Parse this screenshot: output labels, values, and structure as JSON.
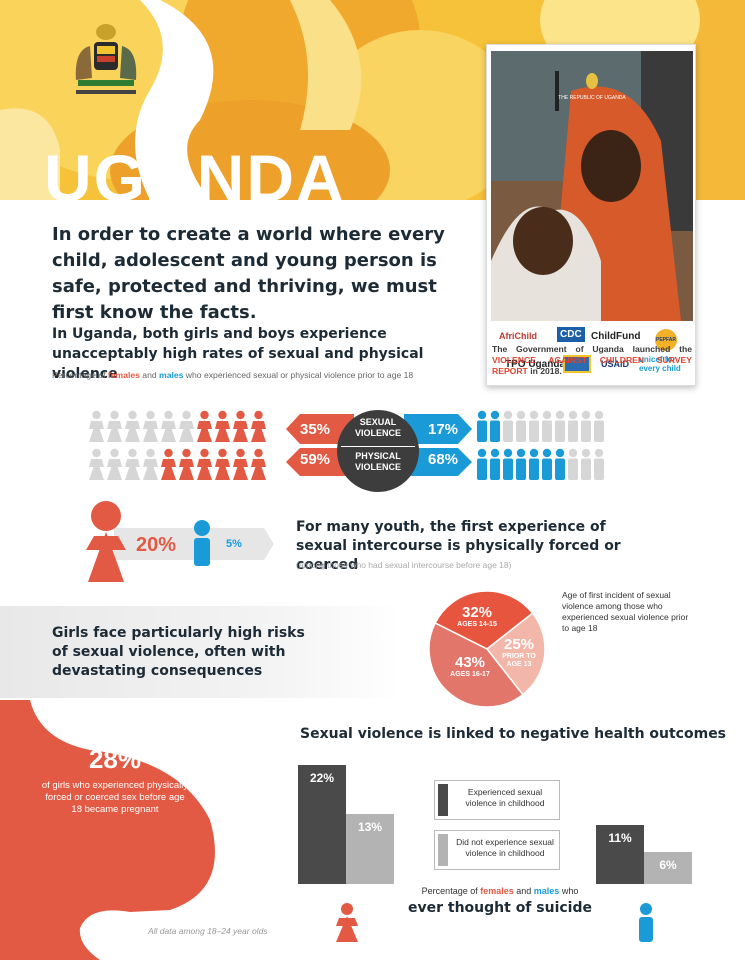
{
  "header": {
    "country": "UGANDA",
    "crest_text": "THE REPUBLIC OF UGANDA"
  },
  "intro": "In order to create a world where every child, adolescent and young person is safe, protected and thriving, we must first know the facts.",
  "violence": {
    "heading": "In Uganda, both girls and boys experience unacceptably high rates of sexual and physical violence",
    "subtitle_pre": "Percentage of ",
    "subtitle_females": "females",
    "subtitle_and": " and ",
    "subtitle_males": "males",
    "subtitle_post": " who experienced sexual or physical violence prior to age 18",
    "sexual": {
      "label": "SEXUAL VIOLENCE",
      "female": "35%",
      "male": "17%",
      "female_value": 35,
      "male_value": 17
    },
    "physical": {
      "label": "PHYSICAL VIOLENCE",
      "female": "59%",
      "male": "68%",
      "female_value": 59,
      "male_value": 68
    },
    "colors": {
      "female": "#e35a44",
      "male": "#1a9bd8",
      "neutral": "#d6d6d6",
      "center": "#3d3d3d"
    }
  },
  "forced": {
    "female": "20%",
    "male": "5%",
    "text": "For many youth, the first experience of sexual intercourse is physically forced or coerced",
    "note": "(among those who had sexual intercourse before age 18)"
  },
  "girls": {
    "text": "Girls face particularly high risks of sexual violence, often with devastating consequences"
  },
  "age_pie": {
    "caption": "Age of first incident of sexual violence among those who experienced sexual violence prior to age 18",
    "slices": [
      {
        "value": "32%",
        "label": "AGES 14-15",
        "pct": 32,
        "color": "#e8553f"
      },
      {
        "value": "25%",
        "label": "PRIOR TO AGE 13",
        "pct": 25,
        "color": "#f3b7aa"
      },
      {
        "value": "43%",
        "label": "AGES 16-17",
        "pct": 43,
        "color": "#e2766a"
      }
    ]
  },
  "pregnant": {
    "value": "28%",
    "text": "of girls who experienced physically forced or coerced sex before age 18 became pregnant"
  },
  "health": {
    "title": "Sexual violence is linked to negative health outcomes",
    "female_bars": [
      {
        "label": "22%",
        "value": 22
      },
      {
        "label": "13%",
        "value": 13
      }
    ],
    "male_bars": [
      {
        "label": "11%",
        "value": 11
      },
      {
        "label": "6%",
        "value": 6
      }
    ],
    "legend": [
      {
        "text": "Experienced sexual violence in childhood",
        "color": "#4a4a4a"
      },
      {
        "text": "Did not experience sexual violence in childhood",
        "color": "#b3b3b3"
      }
    ],
    "caption_pre": "Percentage of ",
    "caption_females": "females",
    "caption_and": " and ",
    "caption_males": "males",
    "caption_post": " who",
    "caption_big": "ever thought of suicide"
  },
  "cover": {
    "crest_text": "THE REPUBLIC OF UGANDA",
    "caption_pre": "The Government of Uganda launched the ",
    "caption_red": "VIOLENCE AGAINST CHILDREN SURVEY REPORT",
    "caption_post": " in 2018.",
    "logos": [
      "AfriChild",
      "CDC",
      "ChildFund",
      "PEPFAR",
      "TPO Uganda",
      "",
      "USAID",
      "unicef for every child"
    ]
  },
  "footnote": "All data among 18–24 year olds"
}
